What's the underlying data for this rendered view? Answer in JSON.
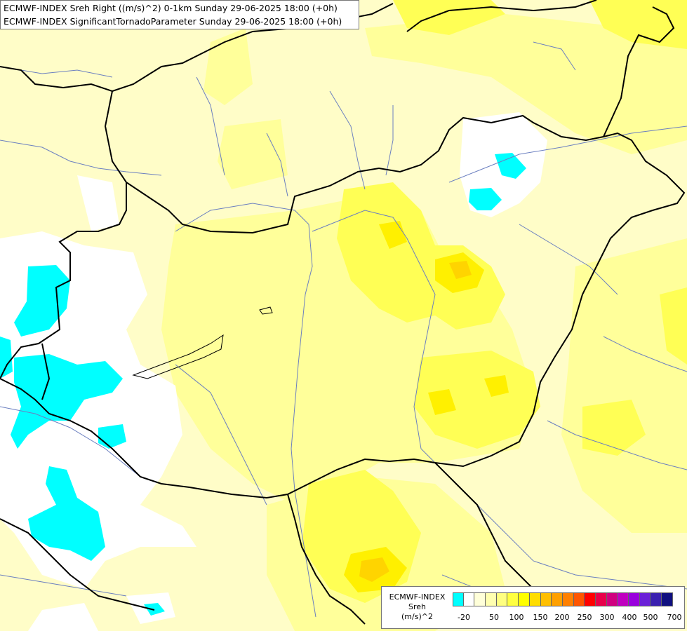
{
  "title": {
    "line1": "ECMWF-INDEX Sreh Right ((m/s)^2) 0-1km Sunday 29-06-2025 18:00 (+0h)",
    "line2": "ECMWF-INDEX SignificantTornadoParameter Sunday 29-06-2025 18:00 (+0h)"
  },
  "legend": {
    "title_line1": "ECMWF-INDEX",
    "title_line2": "Sreh",
    "title_line3": "(m/s)^2",
    "colors": [
      "#00ffff",
      "#ffffff",
      "#ffffd9",
      "#ffffb0",
      "#ffff80",
      "#ffff40",
      "#ffff00",
      "#ffdd00",
      "#ffbf00",
      "#ffa000",
      "#ff8000",
      "#ff5500",
      "#ff0000",
      "#e8004a",
      "#d00080",
      "#c000c0",
      "#9900dd",
      "#6a20d8",
      "#3a20b0",
      "#101080"
    ],
    "ticks": [
      "-20",
      "50",
      "100",
      "150",
      "200",
      "250",
      "300",
      "400",
      "500",
      "700"
    ]
  },
  "map_colors": {
    "background": "#fffdc8",
    "pale_yellow": "#fffdb0",
    "yellow": "#ffff80",
    "yellow_strong": "#ffff40",
    "yellow_deep": "#fff000",
    "gold": "#ffdd00",
    "orange": "#ffc000",
    "cyan": "#00ffff",
    "white": "#ffffff",
    "border": "#000000",
    "river": "#6b7fc0"
  }
}
